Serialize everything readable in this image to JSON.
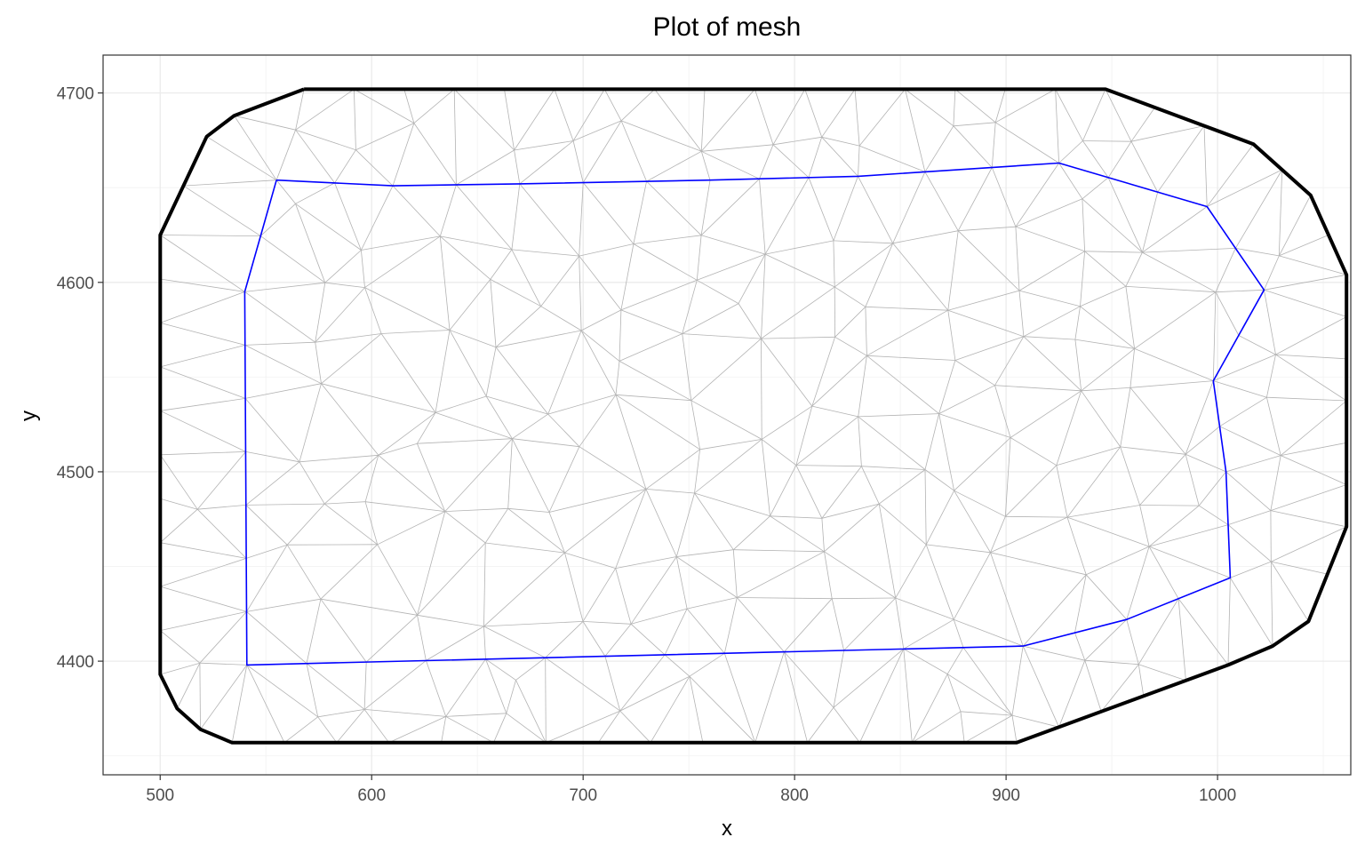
{
  "chart_data": {
    "type": "line",
    "title": "Plot of mesh",
    "xlabel": "x",
    "ylabel": "y",
    "xlim": [
      473,
      1063
    ],
    "ylim": [
      4340,
      4720
    ],
    "x_ticks": [
      500,
      600,
      700,
      800,
      900,
      1000
    ],
    "y_ticks": [
      4400,
      4500,
      4600,
      4700
    ],
    "x_tick_labels": [
      "500",
      "600",
      "700",
      "800",
      "900",
      "1000"
    ],
    "y_tick_labels": [
      "4400",
      "4500",
      "4600",
      "4700"
    ],
    "grid": true,
    "colors": {
      "outer_boundary": "#000000",
      "inner_boundary": "#0000ff",
      "mesh_edges": "#b3b3b3",
      "grid_major": "#ebebeb",
      "grid_minor": "#f4f4f4",
      "panel_border": "#333333"
    },
    "series": [
      {
        "role": "outer boundary",
        "x": [
          568,
          947,
          1017,
          1044,
          1061,
          1061,
          1043,
          1026,
          1005,
          905,
          534,
          519,
          508,
          500,
          500,
          522,
          535,
          568
        ],
        "y": [
          4702,
          4702,
          4673,
          4646,
          4604,
          4471,
          4421,
          4408,
          4398,
          4357,
          4357,
          4364,
          4375,
          4393,
          4625,
          4677,
          4688,
          4702
        ]
      },
      {
        "role": "inner boundary",
        "x": [
          555,
          610,
          670,
          760,
          830,
          925,
          995,
          1022,
          998,
          1004,
          1006,
          957,
          908,
          541,
          540,
          555
        ],
        "y": [
          4654,
          4651,
          4652,
          4654,
          4656,
          4663,
          4640,
          4596,
          4548,
          4500,
          4444,
          4422,
          4408,
          4398,
          4595,
          4654
        ]
      }
    ]
  }
}
